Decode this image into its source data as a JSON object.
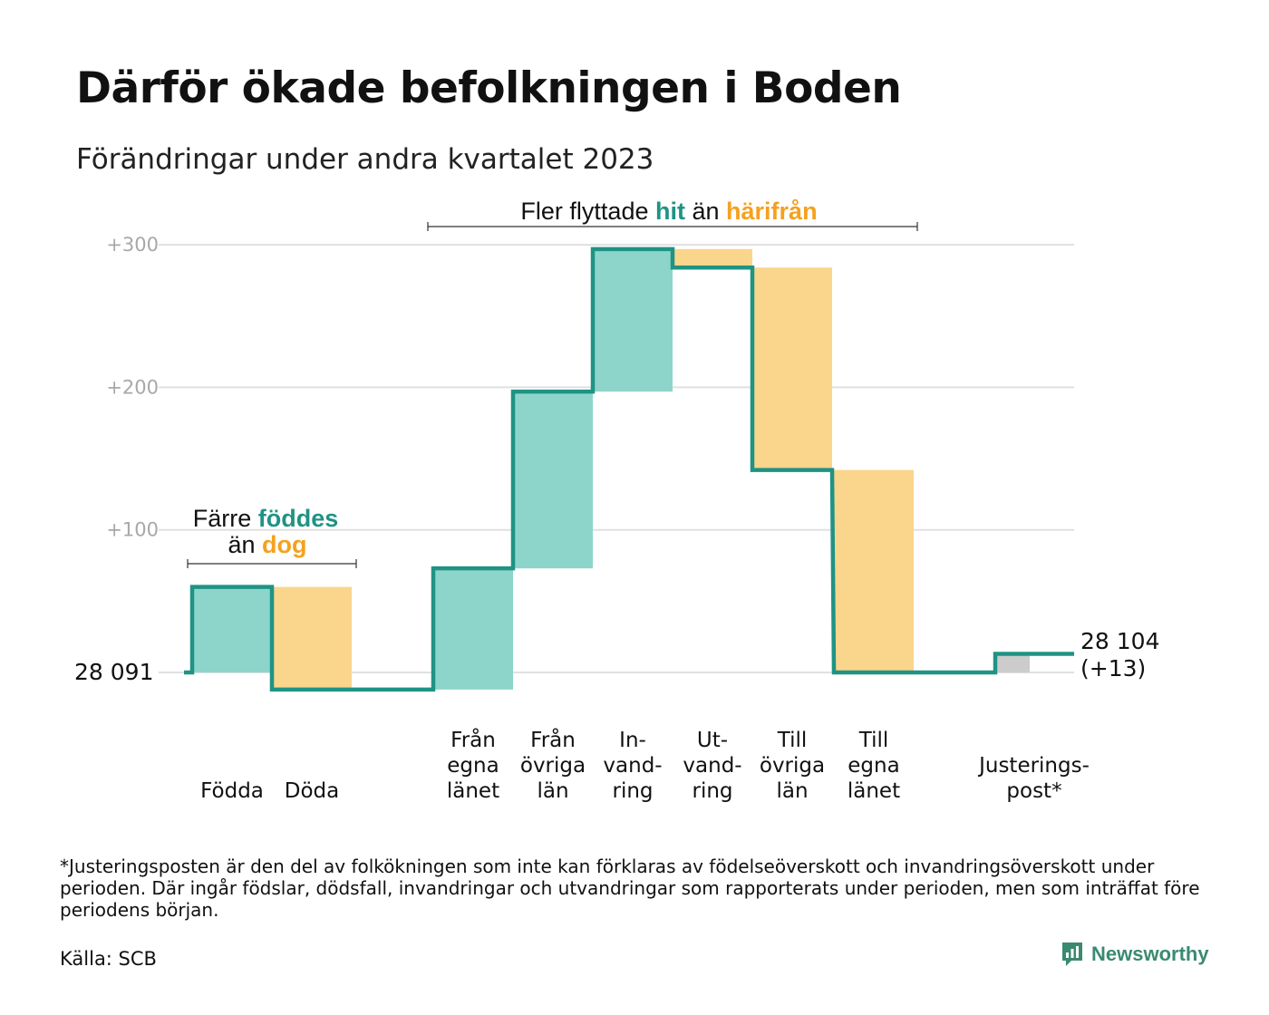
{
  "title": "Därför ökade befolkningen i Boden",
  "subtitle": "Förändringar under andra kvartalet 2023",
  "colors": {
    "teal_line": "#1f9384",
    "teal_fill": "#8dd5cb",
    "orange_fill": "#fad58c",
    "orange_text": "#f5a11e",
    "teal_text": "#1f9384",
    "adjust_fill": "#cccccc",
    "grid": "#e0e0e0",
    "tick_text": "#a8a8a8",
    "brand": "#3a8a72"
  },
  "chart_data": {
    "type": "waterfall",
    "baseline_label": "28  091",
    "yticks": [
      "+100",
      "+200",
      "+300"
    ],
    "ylim": [
      0,
      300
    ],
    "grid": true,
    "steps": [
      {
        "label_lines": [
          "Födda"
        ],
        "delta": 60,
        "kind": "in"
      },
      {
        "label_lines": [
          "Döda"
        ],
        "delta": -72,
        "kind": "out"
      },
      {
        "label_lines": [
          "Från",
          "egna",
          "länet"
        ],
        "delta": 85,
        "kind": "in"
      },
      {
        "label_lines": [
          "Från",
          "övriga",
          "län"
        ],
        "delta": 124,
        "kind": "in"
      },
      {
        "label_lines": [
          "In-",
          "vand-",
          "ring"
        ],
        "delta": 100,
        "kind": "in"
      },
      {
        "label_lines": [
          "Ut-",
          "vand-",
          "ring"
        ],
        "delta": -13,
        "kind": "out"
      },
      {
        "label_lines": [
          "Till",
          "övriga",
          "län"
        ],
        "delta": -142,
        "kind": "out"
      },
      {
        "label_lines": [
          "Till",
          "egna",
          "länet"
        ],
        "delta": -142,
        "kind": "out"
      },
      {
        "label_lines": [
          "Justerings-",
          "post*"
        ],
        "delta": 13,
        "kind": "adjust"
      }
    ],
    "end_label_lines": [
      "28 104",
      "(+13)"
    ],
    "annotations": [
      {
        "id": "births",
        "parts": [
          {
            "text": "Färre ",
            "style": "plain"
          },
          {
            "text": "föddes",
            "style": "teal"
          }
        ],
        "parts2": [
          {
            "text": "än ",
            "style": "plain"
          },
          {
            "text": "dog",
            "style": "orange"
          }
        ]
      },
      {
        "id": "moves",
        "parts": [
          {
            "text": "Fler flyttade ",
            "style": "plain"
          },
          {
            "text": "hit",
            "style": "teal"
          },
          {
            "text": " än ",
            "style": "plain"
          },
          {
            "text": "härifrån",
            "style": "orange"
          }
        ]
      }
    ]
  },
  "footnote": "*Justeringsposten är den del av folkökningen som inte kan förklaras av födelseöverskott och invandringsöverskott under perioden. Där ingår födslar, dödsfall, invandringar och utvandringar som rapporterats under perioden, men som inträffat före periodens början.",
  "source": "Källa: SCB",
  "brand_name": "Newsworthy",
  "brand_icon": "bar-chart-speech-bubble-icon"
}
